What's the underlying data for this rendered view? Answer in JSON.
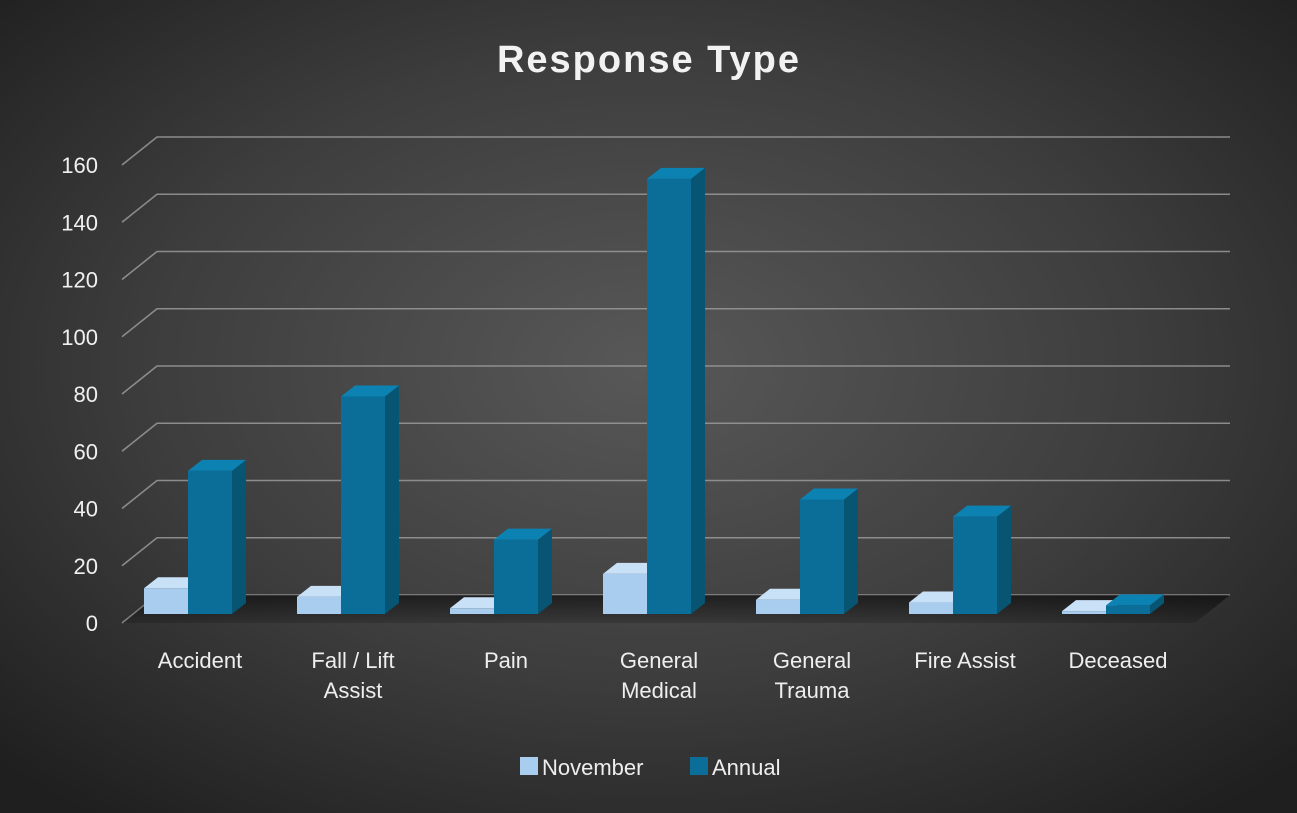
{
  "chart_data": {
    "type": "bar",
    "title": "Response Type",
    "categories": [
      [
        "Accident"
      ],
      [
        "Fall / Lift",
        "Assist"
      ],
      [
        "Pain"
      ],
      [
        "General",
        "Medical"
      ],
      [
        "General",
        "Trauma"
      ],
      [
        "Fire Assist"
      ],
      [
        "Deceased"
      ]
    ],
    "series": [
      {
        "name": "November",
        "values": [
          9,
          6,
          2,
          14,
          5,
          4,
          1
        ],
        "colors": {
          "front": "#a9cdee",
          "side": "#7ea9cf",
          "top": "#c9e1f7"
        }
      },
      {
        "name": "Annual",
        "values": [
          50,
          76,
          26,
          152,
          40,
          34,
          3
        ],
        "colors": {
          "front": "#0a6e98",
          "side": "#075572",
          "top": "#0c82b2"
        }
      }
    ],
    "ylim": [
      0,
      160
    ],
    "yticks": [
      0,
      20,
      40,
      60,
      80,
      100,
      120,
      140,
      160
    ],
    "grid": true,
    "legend_position": "bottom",
    "style": "3d-clustered-column"
  }
}
